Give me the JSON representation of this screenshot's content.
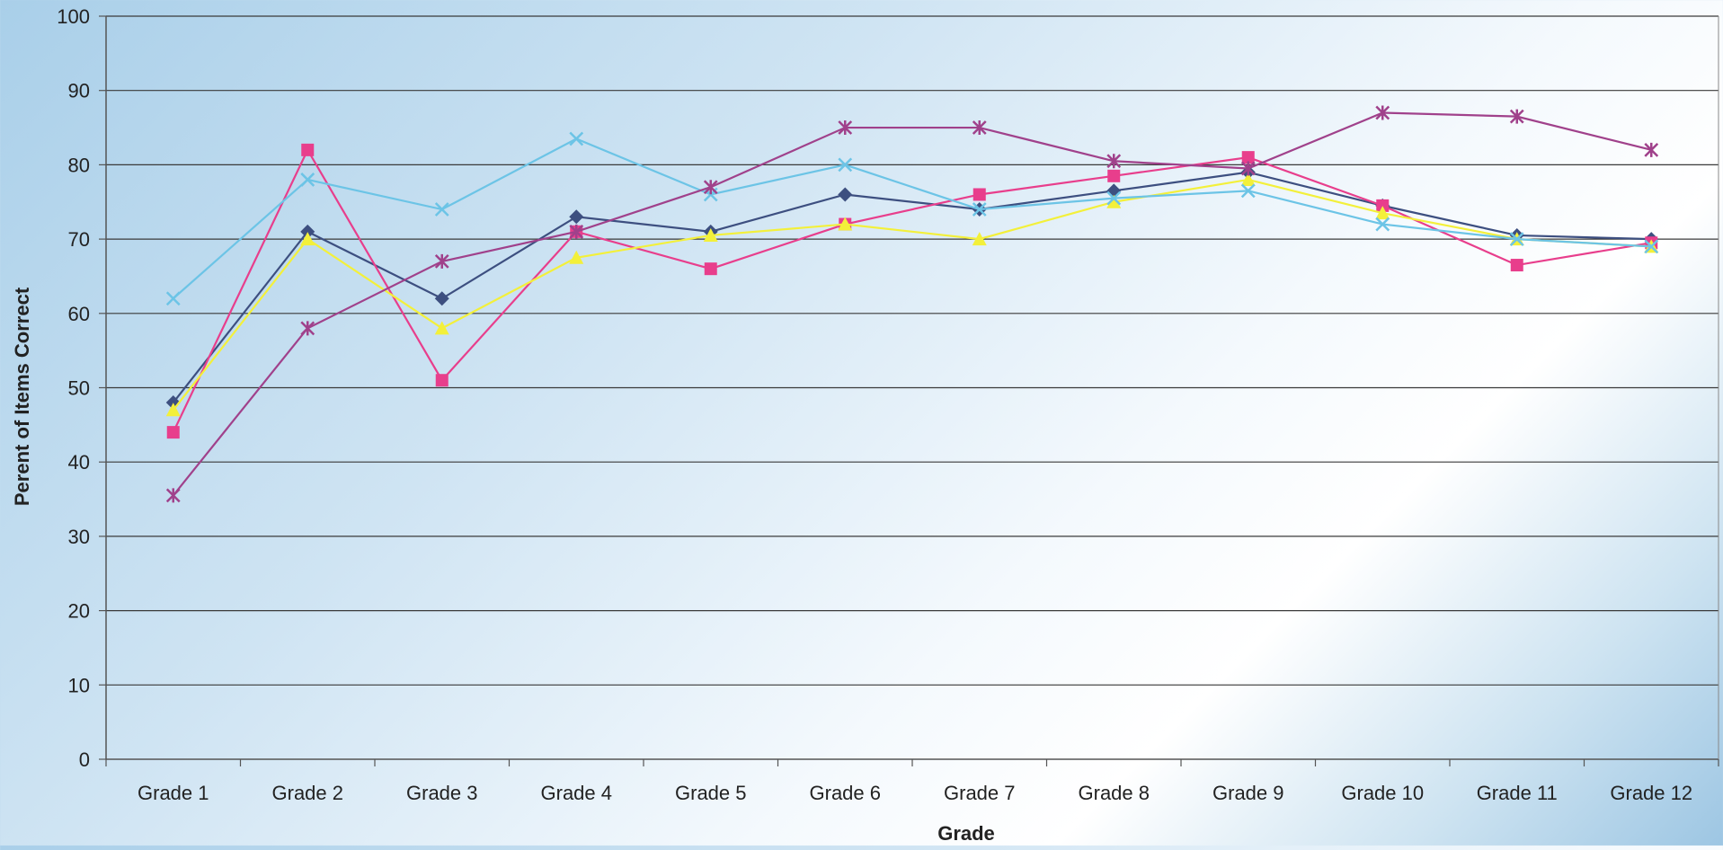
{
  "chart_data": {
    "type": "line",
    "title": "",
    "xlabel": "Grade",
    "ylabel": "Perent of Items Correct",
    "categories": [
      "Grade 1",
      "Grade 2",
      "Grade 3",
      "Grade 4",
      "Grade 5",
      "Grade 6",
      "Grade 7",
      "Grade 8",
      "Grade 9",
      "Grade 10",
      "Grade 11",
      "Grade 12"
    ],
    "ylim": [
      0,
      100
    ],
    "yticks": [
      "0",
      "10",
      "20",
      "30",
      "40",
      "50",
      "60",
      "70",
      "80",
      "90",
      "100"
    ],
    "grid": true,
    "legend": "none",
    "series": [
      {
        "color": "#3d4f80",
        "marker": "diamond",
        "values": [
          48,
          71,
          62,
          73,
          71,
          76,
          74,
          76.5,
          79,
          74.5,
          70.5,
          70
        ]
      },
      {
        "color": "#e83e8c",
        "marker": "square",
        "values": [
          44,
          82,
          51,
          71,
          66,
          72,
          76,
          78.5,
          81,
          74.5,
          66.5,
          69.5
        ]
      },
      {
        "color": "#f3f03a",
        "marker": "triangle",
        "values": [
          47,
          70,
          58,
          67.5,
          70.5,
          72,
          70,
          75,
          78,
          73.5,
          70,
          69
        ]
      },
      {
        "color": "#6cc4e6",
        "marker": "x",
        "values": [
          62,
          78,
          74,
          83.5,
          76,
          80,
          74,
          75.5,
          76.5,
          72,
          70,
          69
        ]
      },
      {
        "color": "#a0418b",
        "marker": "star",
        "values": [
          35.5,
          58,
          67,
          71,
          77,
          85,
          85,
          80.5,
          79.5,
          87,
          86.5,
          82
        ]
      }
    ]
  }
}
